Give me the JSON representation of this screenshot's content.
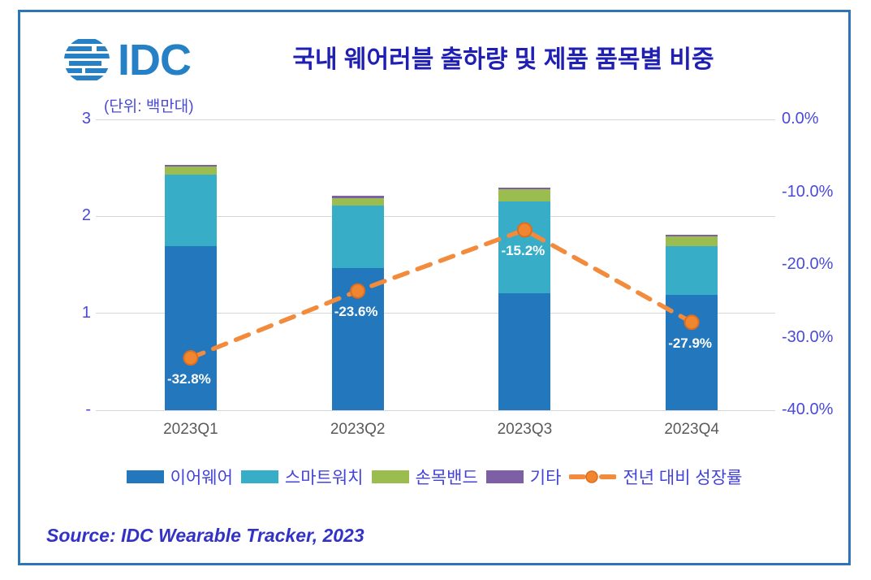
{
  "header": {
    "logo_text": "IDC",
    "title": "국내 웨어러블 출하량 및 제품 품목별 비중",
    "unit_label": "(단위: 백만대)"
  },
  "source": "Source: IDC Wearable Tracker, 2023",
  "colors": {
    "earwear": "#2277BD",
    "smartwatch": "#38ADC7",
    "wristband": "#9BBD4F",
    "other": "#7C5FA5",
    "growth_line": "#F28B3C",
    "growth_marker_fill": "#F0862F",
    "growth_marker_edge": "#DE6E1E",
    "title_text": "#1F1FB4",
    "axis_text": "#4A4AD8",
    "xaxis_text": "#5A5A5A",
    "legend_text": "#4343D8",
    "source_text": "#3232C8",
    "frame_border": "#2E75B6",
    "gridline": "#D6D6D6",
    "logo_blue": "#2580C5",
    "point_label_text": "#FFFFFF"
  },
  "chart_data": {
    "type": "bar",
    "subtype": "stacked-bar-with-line-combo",
    "title": "국내 웨어러블 출하량 및 제품 품목별 비중",
    "unit": "(단위: 백만대)",
    "categories": [
      "2023Q1",
      "2023Q2",
      "2023Q3",
      "2023Q4"
    ],
    "series": [
      {
        "name": "이어웨어",
        "values": [
          1.69,
          1.47,
          1.21,
          1.19
        ]
      },
      {
        "name": "스마트워치",
        "values": [
          0.74,
          0.64,
          0.94,
          0.5
        ]
      },
      {
        "name": "손목밴드",
        "values": [
          0.08,
          0.08,
          0.13,
          0.1
        ]
      },
      {
        "name": "기타",
        "values": [
          0.02,
          0.02,
          0.02,
          0.02
        ]
      }
    ],
    "line_series": {
      "name": "전년 대비 성장률",
      "values": [
        -32.8,
        -23.6,
        -15.2,
        -27.9
      ],
      "labels": [
        "-32.8%",
        "-23.6%",
        "-15.2%",
        "-27.9%"
      ]
    },
    "left_axis": {
      "ticks": [
        "3",
        "2",
        "1",
        "-"
      ],
      "min": 0,
      "max": 3
    },
    "right_axis": {
      "ticks": [
        "0.0%",
        "-10.0%",
        "-20.0%",
        "-30.0%",
        "-40.0%"
      ],
      "min": -40,
      "max": 0
    },
    "grid": true,
    "legend_position": "bottom"
  }
}
